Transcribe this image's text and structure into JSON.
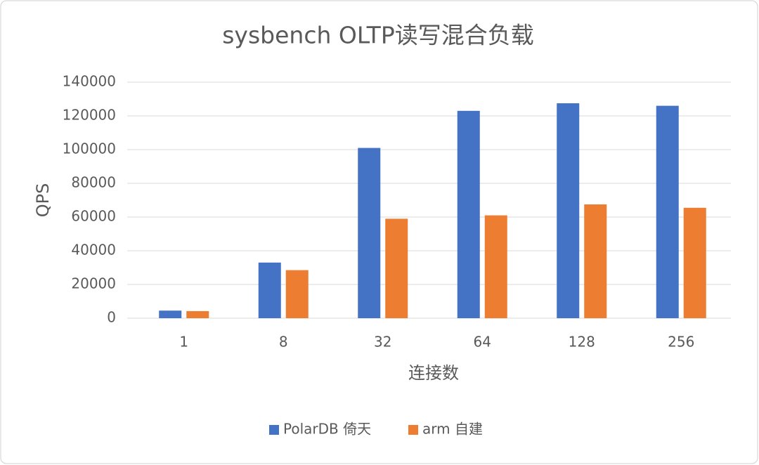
{
  "chart_data": {
    "type": "bar",
    "title": "sysbench OLTP读写混合负载",
    "x_label": "连接数",
    "y_label": "QPS",
    "categories": [
      "1",
      "8",
      "32",
      "64",
      "128",
      "256"
    ],
    "series": [
      {
        "name": "PolarDB 倚天",
        "color": "#4472c4",
        "values": [
          4500,
          33000,
          101000,
          123000,
          127500,
          126000
        ]
      },
      {
        "name": "arm 自建",
        "color": "#ed7d31",
        "values": [
          4200,
          28500,
          59000,
          61000,
          67500,
          65500
        ]
      }
    ],
    "ylim": [
      0,
      140000
    ],
    "yticks": [
      0,
      20000,
      40000,
      60000,
      80000,
      100000,
      120000,
      140000
    ],
    "grid": true,
    "legend": "bottom"
  }
}
